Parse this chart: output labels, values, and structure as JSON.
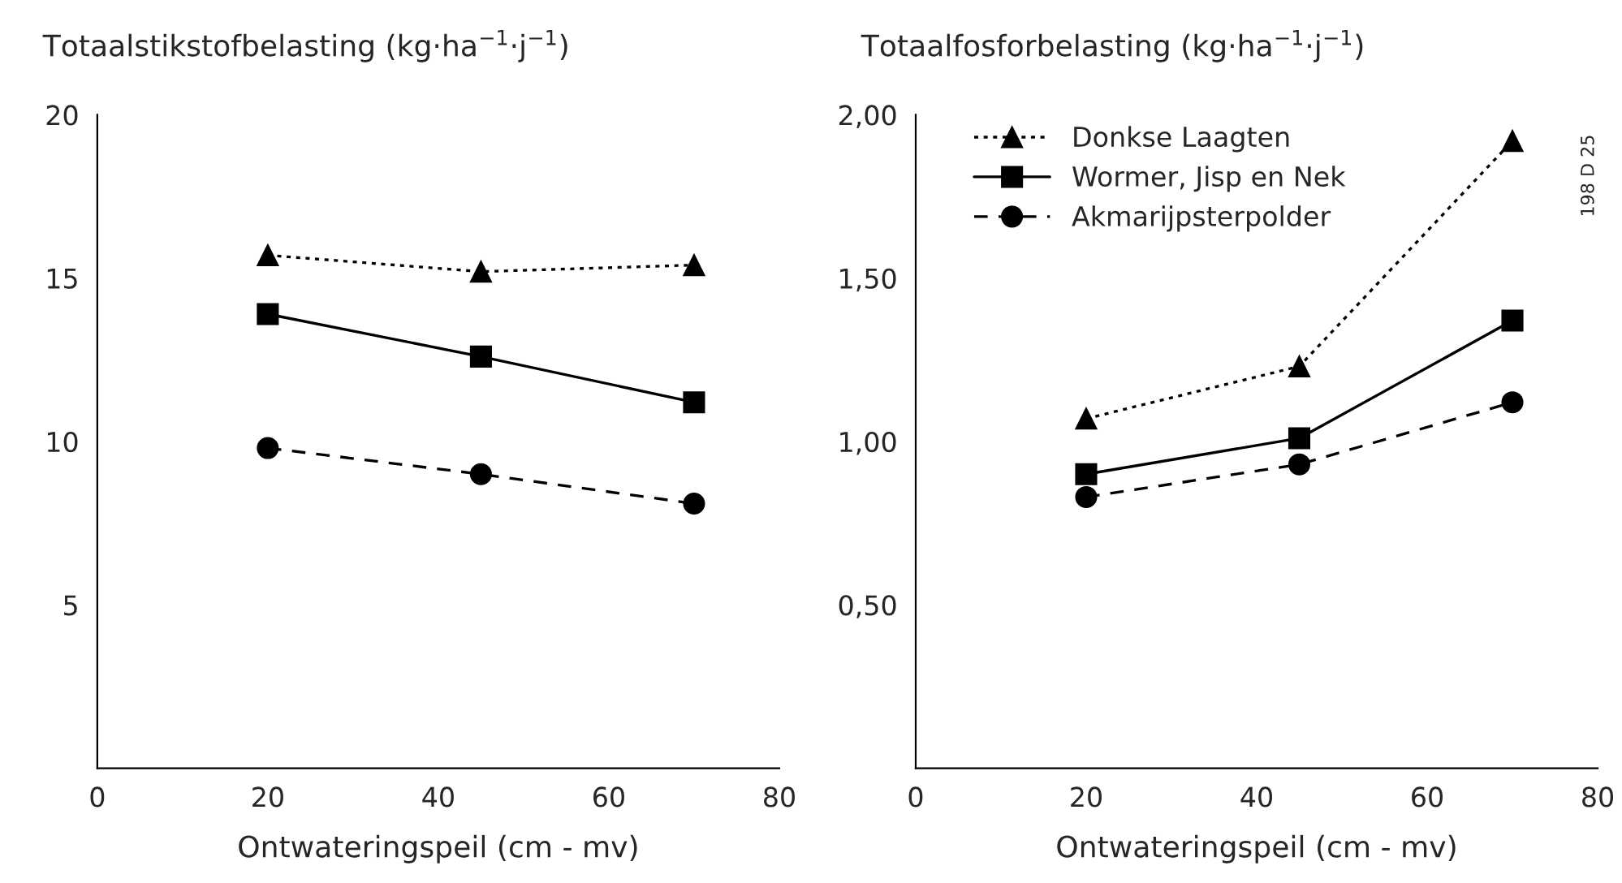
{
  "chart_data": [
    {
      "type": "line",
      "ylabel": "Totaalstikstofbelasting (kg·ha$^{−1}$·j$^{−1}$)",
      "xlabel": "Ontwateringspeil (cm - mv)",
      "x": [
        20,
        45,
        70
      ],
      "xlim": [
        0,
        80
      ],
      "xticks": [
        0,
        20,
        40,
        60,
        80
      ],
      "ylim": [
        0,
        20
      ],
      "yticks": [
        5,
        10,
        15,
        20
      ],
      "grid": false,
      "legend": false,
      "series": [
        {
          "color": "#000000",
          "marker": "triangle",
          "line_style": "dotted",
          "values": [
            15.7,
            15.2,
            15.4
          ]
        },
        {
          "color": "#000000",
          "marker": "square",
          "line_style": "solid",
          "values": [
            13.9,
            12.6,
            11.2
          ]
        },
        {
          "color": "#000000",
          "marker": "circle",
          "line_style": "dashed",
          "values": [
            9.8,
            9.0,
            8.1
          ]
        }
      ]
    },
    {
      "type": "line",
      "ylabel": "Totaalfosforbelasting (kg·ha$^{−1}$·j$^{−1}$)",
      "xlabel": "Ontwateringspeil (cm - mv)",
      "x": [
        20,
        45,
        70
      ],
      "xlim": [
        0,
        80
      ],
      "xticks": [
        0,
        20,
        40,
        60,
        80
      ],
      "ylim": [
        0,
        2.0
      ],
      "yticks": [
        {
          "value": 0.5,
          "label": "0,50"
        },
        {
          "value": 1.0,
          "label": "1,00"
        },
        {
          "value": 1.5,
          "label": "1,50"
        },
        {
          "value": 2.0,
          "label": "2,00"
        }
      ],
      "grid": false,
      "legend": "top left",
      "annotations": [
        "198 D 25"
      ],
      "series": [
        {
          "name": "Donkse Laagten",
          "color": "#000000",
          "marker": "triangle",
          "line_style": "dotted",
          "values": [
            1.07,
            1.23,
            1.92
          ]
        },
        {
          "name": "Wormer, Jisp en Nek",
          "color": "#000000",
          "marker": "square",
          "line_style": "solid",
          "values": [
            0.9,
            1.01,
            1.37
          ]
        },
        {
          "name": "Akmarijpsterpolder",
          "color": "#000000",
          "marker": "circle",
          "line_style": "dashed",
          "values": [
            0.83,
            0.93,
            1.12
          ]
        }
      ]
    }
  ]
}
